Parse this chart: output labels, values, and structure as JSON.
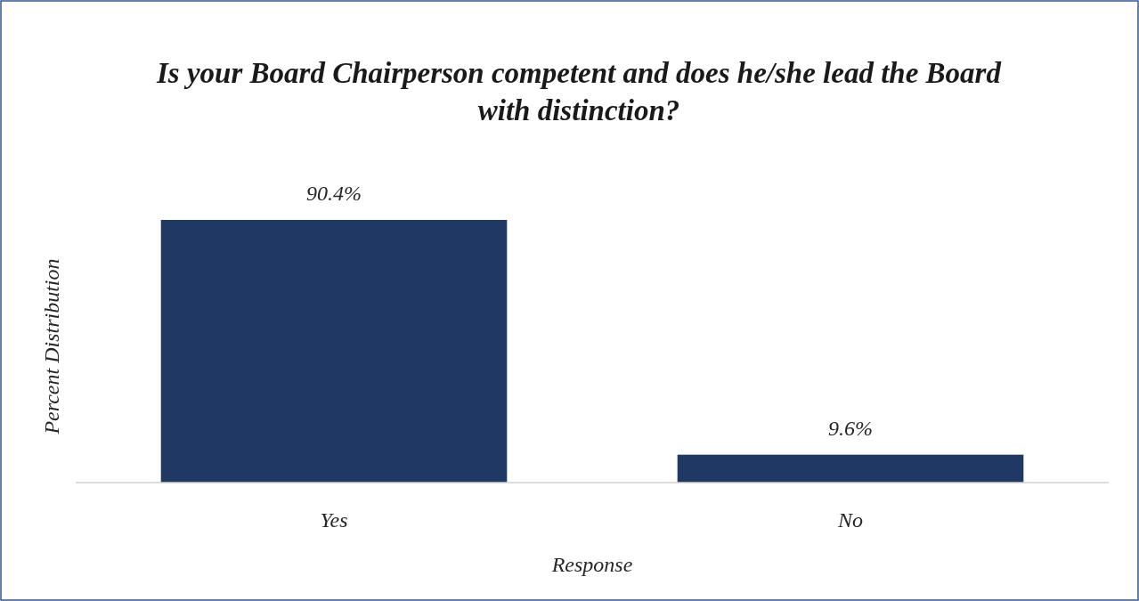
{
  "chart_data": {
    "type": "bar",
    "title": "Is your Board Chairperson competent and does he/she lead the Board with distinction?",
    "xlabel": "Response",
    "ylabel": "Percent Distribution",
    "categories": [
      "Yes",
      "No"
    ],
    "values": [
      90.4,
      9.6
    ],
    "value_labels": [
      "90.4%",
      "9.6%"
    ],
    "color": "#203864",
    "tick_labels": "x"
  }
}
